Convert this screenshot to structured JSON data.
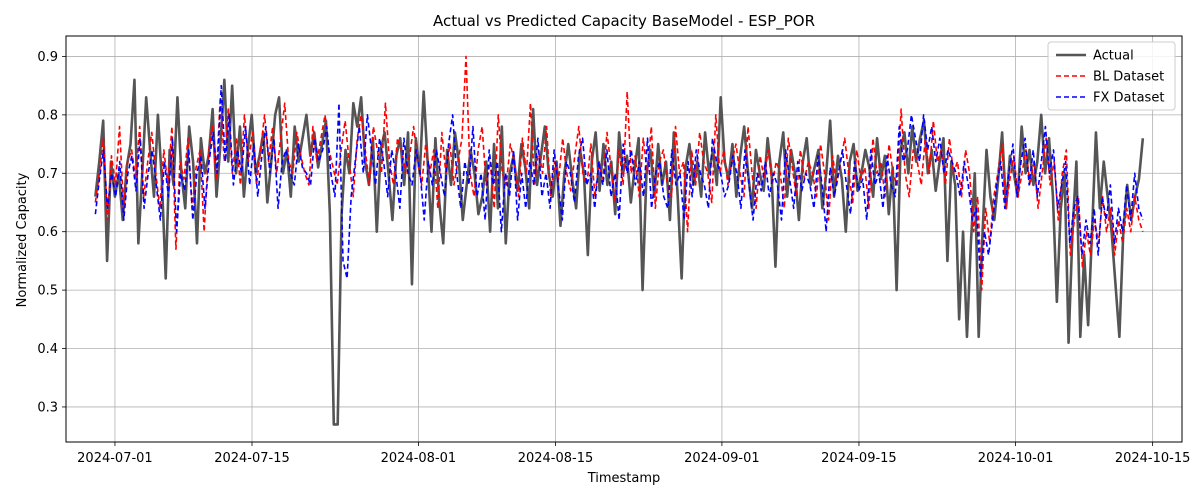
{
  "chart_data": {
    "type": "line",
    "title": "Actual vs Predicted Capacity BaseModel - ESP_POR",
    "xlabel": "Timestamp",
    "ylabel": "Normalized Capacity",
    "x_ticks": [
      "2024-07-01",
      "2024-07-15",
      "2024-08-01",
      "2024-08-15",
      "2024-09-01",
      "2024-09-15",
      "2024-10-01",
      "2024-10-15"
    ],
    "y_ticks": [
      "0.3",
      "0.4",
      "0.5",
      "0.6",
      "0.7",
      "0.8",
      "0.9"
    ],
    "xlim": [
      "2024-06-26",
      "2024-10-18"
    ],
    "ylim": [
      0.24,
      0.935
    ],
    "grid": true,
    "legend_position": "top-right",
    "date_range": [
      "2024-06-29",
      "2024-10-14"
    ],
    "series": [
      {
        "name": "Actual",
        "color": "#555555",
        "style": "solid",
        "values": [
          0.66,
          0.72,
          0.79,
          0.55,
          0.72,
          0.66,
          0.7,
          0.62,
          0.71,
          0.75,
          0.86,
          0.58,
          0.7,
          0.83,
          0.74,
          0.66,
          0.8,
          0.69,
          0.52,
          0.74,
          0.68,
          0.83,
          0.7,
          0.64,
          0.78,
          0.72,
          0.58,
          0.76,
          0.7,
          0.73,
          0.81,
          0.66,
          0.75,
          0.86,
          0.72,
          0.85,
          0.7,
          0.78,
          0.66,
          0.74,
          0.8,
          0.7,
          0.73,
          0.77,
          0.65,
          0.72,
          0.8,
          0.83,
          0.7,
          0.74,
          0.66,
          0.78,
          0.72,
          0.76,
          0.8,
          0.73,
          0.77,
          0.71,
          0.75,
          0.79,
          0.63,
          0.27,
          0.27,
          0.63,
          0.74,
          0.7,
          0.82,
          0.78,
          0.83,
          0.72,
          0.68,
          0.76,
          0.6,
          0.74,
          0.77,
          0.7,
          0.62,
          0.73,
          0.76,
          0.68,
          0.77,
          0.51,
          0.76,
          0.7,
          0.84,
          0.72,
          0.6,
          0.76,
          0.65,
          0.58,
          0.74,
          0.68,
          0.77,
          0.72,
          0.62,
          0.68,
          0.74,
          0.7,
          0.63,
          0.66,
          0.72,
          0.6,
          0.75,
          0.64,
          0.78,
          0.58,
          0.7,
          0.73,
          0.67,
          0.75,
          0.71,
          0.64,
          0.81,
          0.68,
          0.73,
          0.78,
          0.7,
          0.66,
          0.72,
          0.61,
          0.7,
          0.75,
          0.69,
          0.64,
          0.74,
          0.7,
          0.56,
          0.72,
          0.77,
          0.67,
          0.75,
          0.68,
          0.72,
          0.63,
          0.77,
          0.7,
          0.73,
          0.65,
          0.71,
          0.76,
          0.5,
          0.7,
          0.74,
          0.66,
          0.75,
          0.68,
          0.72,
          0.62,
          0.77,
          0.66,
          0.52,
          0.71,
          0.75,
          0.68,
          0.72,
          0.66,
          0.77,
          0.7,
          0.74,
          0.68,
          0.83,
          0.72,
          0.69,
          0.75,
          0.66,
          0.73,
          0.78,
          0.7,
          0.64,
          0.74,
          0.7,
          0.67,
          0.76,
          0.7,
          0.54,
          0.72,
          0.77,
          0.66,
          0.74,
          0.7,
          0.62,
          0.72,
          0.76,
          0.68,
          0.71,
          0.74,
          0.64,
          0.7,
          0.79,
          0.66,
          0.73,
          0.69,
          0.6,
          0.72,
          0.75,
          0.67,
          0.7,
          0.74,
          0.71,
          0.66,
          0.76,
          0.69,
          0.73,
          0.63,
          0.71,
          0.5,
          0.74,
          0.77,
          0.7,
          0.78,
          0.72,
          0.76,
          0.79,
          0.7,
          0.74,
          0.67,
          0.72,
          0.76,
          0.55,
          0.72,
          0.68,
          0.45,
          0.6,
          0.42,
          0.58,
          0.7,
          0.42,
          0.6,
          0.74,
          0.66,
          0.62,
          0.69,
          0.77,
          0.64,
          0.73,
          0.7,
          0.66,
          0.78,
          0.7,
          0.74,
          0.68,
          0.72,
          0.8,
          0.7,
          0.76,
          0.66,
          0.48,
          0.64,
          0.7,
          0.41,
          0.6,
          0.72,
          0.42,
          0.56,
          0.44,
          0.6,
          0.77,
          0.64,
          0.72,
          0.66,
          0.6,
          0.51,
          0.42,
          0.6,
          0.68,
          0.62,
          0.66,
          0.69,
          0.76
        ]
      },
      {
        "name": "BL Dataset",
        "color": "#ff0000",
        "style": "dashed",
        "values": [
          0.65,
          0.7,
          0.76,
          0.62,
          0.73,
          0.68,
          0.78,
          0.64,
          0.72,
          0.74,
          0.69,
          0.78,
          0.66,
          0.72,
          0.77,
          0.7,
          0.64,
          0.74,
          0.68,
          0.78,
          0.57,
          0.72,
          0.69,
          0.76,
          0.64,
          0.71,
          0.74,
          0.6,
          0.73,
          0.78,
          0.69,
          0.83,
          0.72,
          0.81,
          0.7,
          0.76,
          0.68,
          0.8,
          0.72,
          0.77,
          0.68,
          0.74,
          0.8,
          0.72,
          0.78,
          0.7,
          0.76,
          0.82,
          0.72,
          0.7,
          0.77,
          0.73,
          0.7,
          0.68,
          0.78,
          0.72,
          0.76,
          0.8,
          0.74,
          0.71,
          0.68,
          0.74,
          0.79,
          0.72,
          0.66,
          0.76,
          0.8,
          0.74,
          0.68,
          0.78,
          0.74,
          0.7,
          0.82,
          0.72,
          0.68,
          0.76,
          0.74,
          0.7,
          0.73,
          0.78,
          0.72,
          0.68,
          0.75,
          0.7,
          0.74,
          0.64,
          0.77,
          0.7,
          0.75,
          0.68,
          0.72,
          0.76,
          0.9,
          0.7,
          0.66,
          0.74,
          0.78,
          0.68,
          0.72,
          0.64,
          0.8,
          0.7,
          0.68,
          0.75,
          0.72,
          0.66,
          0.76,
          0.7,
          0.82,
          0.68,
          0.74,
          0.7,
          0.78,
          0.66,
          0.72,
          0.69,
          0.76,
          0.7,
          0.67,
          0.73,
          0.78,
          0.7,
          0.68,
          0.75,
          0.66,
          0.72,
          0.69,
          0.77,
          0.71,
          0.65,
          0.74,
          0.68,
          0.84,
          0.7,
          0.73,
          0.66,
          0.76,
          0.7,
          0.78,
          0.64,
          0.72,
          0.74,
          0.68,
          0.66,
          0.78,
          0.7,
          0.72,
          0.6,
          0.74,
          0.68,
          0.77,
          0.72,
          0.7,
          0.65,
          0.8,
          0.7,
          0.74,
          0.68,
          0.72,
          0.75,
          0.7,
          0.66,
          0.78,
          0.7,
          0.64,
          0.73,
          0.69,
          0.74,
          0.68,
          0.72,
          0.7,
          0.64,
          0.76,
          0.71,
          0.66,
          0.74,
          0.69,
          0.72,
          0.7,
          0.66,
          0.75,
          0.7,
          0.62,
          0.73,
          0.68,
          0.72,
          0.76,
          0.7,
          0.65,
          0.74,
          0.69,
          0.71,
          0.64,
          0.76,
          0.7,
          0.72,
          0.66,
          0.75,
          0.7,
          0.68,
          0.81,
          0.7,
          0.66,
          0.74,
          0.72,
          0.68,
          0.76,
          0.7,
          0.79,
          0.72,
          0.74,
          0.68,
          0.76,
          0.7,
          0.72,
          0.66,
          0.74,
          0.7,
          0.6,
          0.66,
          0.5,
          0.64,
          0.58,
          0.66,
          0.7,
          0.75,
          0.64,
          0.69,
          0.73,
          0.66,
          0.7,
          0.74,
          0.68,
          0.72,
          0.64,
          0.7,
          0.76,
          0.68,
          0.72,
          0.62,
          0.7,
          0.74,
          0.56,
          0.62,
          0.66,
          0.54,
          0.6,
          0.56,
          0.62,
          0.58,
          0.66,
          0.6,
          0.64,
          0.56,
          0.62,
          0.58,
          0.64,
          0.6,
          0.66,
          0.62,
          0.6
        ]
      },
      {
        "name": "FX Dataset",
        "color": "#0000ff",
        "style": "dashed",
        "values": [
          0.63,
          0.69,
          0.74,
          0.64,
          0.7,
          0.66,
          0.72,
          0.62,
          0.7,
          0.73,
          0.67,
          0.76,
          0.64,
          0.7,
          0.74,
          0.68,
          0.62,
          0.72,
          0.66,
          0.76,
          0.6,
          0.7,
          0.67,
          0.74,
          0.62,
          0.7,
          0.73,
          0.64,
          0.72,
          0.77,
          0.7,
          0.85,
          0.72,
          0.8,
          0.68,
          0.74,
          0.7,
          0.78,
          0.68,
          0.75,
          0.66,
          0.73,
          0.78,
          0.7,
          0.76,
          0.64,
          0.72,
          0.74,
          0.7,
          0.68,
          0.75,
          0.71,
          0.7,
          0.68,
          0.76,
          0.72,
          0.74,
          0.78,
          0.7,
          0.66,
          0.82,
          0.55,
          0.52,
          0.66,
          0.72,
          0.78,
          0.7,
          0.8,
          0.74,
          0.68,
          0.76,
          0.72,
          0.66,
          0.74,
          0.7,
          0.64,
          0.76,
          0.7,
          0.68,
          0.74,
          0.7,
          0.62,
          0.72,
          0.68,
          0.74,
          0.7,
          0.66,
          0.75,
          0.8,
          0.7,
          0.64,
          0.72,
          0.68,
          0.78,
          0.66,
          0.7,
          0.62,
          0.74,
          0.68,
          0.72,
          0.6,
          0.7,
          0.66,
          0.74,
          0.62,
          0.7,
          0.64,
          0.72,
          0.68,
          0.76,
          0.66,
          0.7,
          0.64,
          0.74,
          0.68,
          0.62,
          0.72,
          0.7,
          0.65,
          0.73,
          0.76,
          0.68,
          0.7,
          0.64,
          0.72,
          0.68,
          0.74,
          0.66,
          0.7,
          0.62,
          0.75,
          0.7,
          0.74,
          0.68,
          0.72,
          0.66,
          0.76,
          0.64,
          0.7,
          0.72,
          0.66,
          0.64,
          0.74,
          0.68,
          0.7,
          0.62,
          0.72,
          0.66,
          0.74,
          0.7,
          0.68,
          0.64,
          0.76,
          0.72,
          0.7,
          0.66,
          0.68,
          0.73,
          0.7,
          0.64,
          0.74,
          0.68,
          0.62,
          0.7,
          0.67,
          0.72,
          0.66,
          0.7,
          0.68,
          0.62,
          0.74,
          0.69,
          0.64,
          0.72,
          0.67,
          0.7,
          0.68,
          0.64,
          0.73,
          0.68,
          0.6,
          0.71,
          0.66,
          0.7,
          0.74,
          0.68,
          0.63,
          0.72,
          0.67,
          0.69,
          0.62,
          0.74,
          0.68,
          0.7,
          0.64,
          0.73,
          0.68,
          0.66,
          0.78,
          0.72,
          0.74,
          0.8,
          0.76,
          0.72,
          0.8,
          0.74,
          0.78,
          0.72,
          0.76,
          0.7,
          0.74,
          0.72,
          0.7,
          0.66,
          0.72,
          0.68,
          0.62,
          0.64,
          0.52,
          0.6,
          0.56,
          0.62,
          0.68,
          0.72,
          0.64,
          0.7,
          0.75,
          0.66,
          0.72,
          0.76,
          0.68,
          0.74,
          0.66,
          0.72,
          0.78,
          0.7,
          0.74,
          0.64,
          0.68,
          0.72,
          0.58,
          0.64,
          0.66,
          0.56,
          0.62,
          0.58,
          0.64,
          0.56,
          0.66,
          0.62,
          0.68,
          0.58,
          0.64,
          0.6,
          0.68,
          0.62,
          0.7,
          0.64,
          0.62
        ]
      }
    ]
  }
}
